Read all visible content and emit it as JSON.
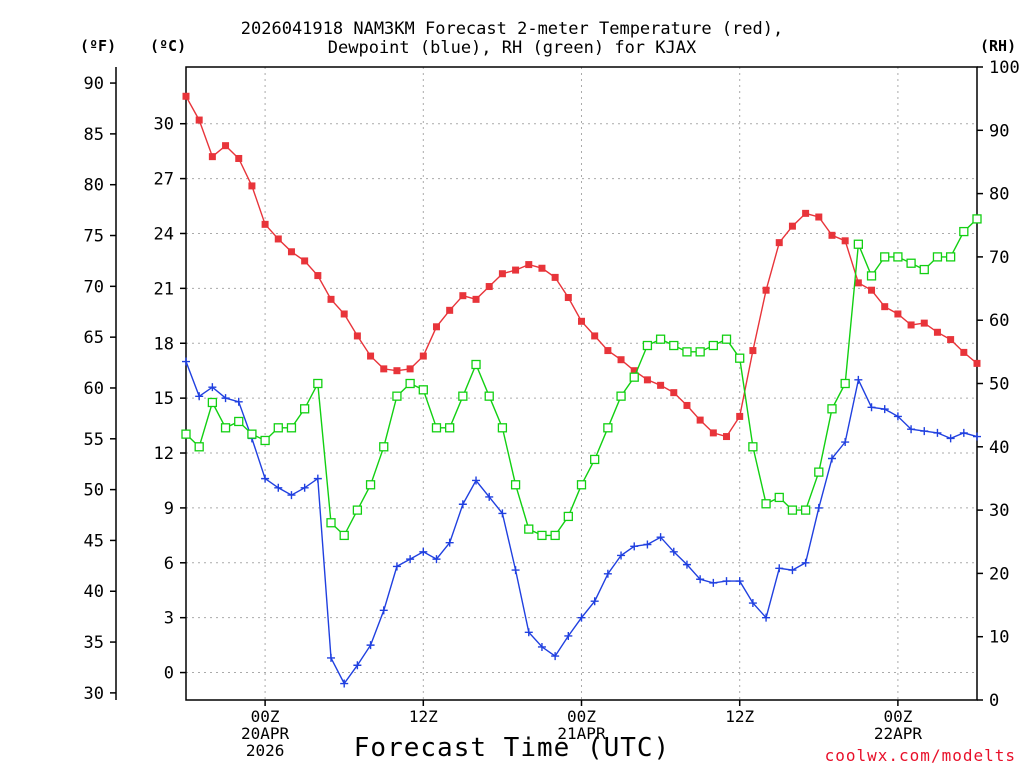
{
  "title_line1": "2026041918 NAM3KM Forecast 2-meter Temperature (red),",
  "title_line2": "Dewpoint (blue), RH (green) for KJAX",
  "unit_f": "(ºF)",
  "unit_c": "(ºC)",
  "unit_rh": "(RH)",
  "credit": "coolwx.com/modelts",
  "chart_data": {
    "type": "line",
    "title": "2026041918 NAM3KM Forecast 2-meter Temperature (red), Dewpoint (blue), RH (green) for KJAX",
    "xlabel": "Forecast Time (UTC)",
    "x_hours": [
      0,
      1,
      2,
      3,
      4,
      5,
      6,
      7,
      8,
      9,
      10,
      11,
      12,
      13,
      14,
      15,
      16,
      17,
      18,
      19,
      20,
      21,
      22,
      23,
      24,
      25,
      26,
      27,
      28,
      29,
      30,
      31,
      32,
      33,
      34,
      35,
      36,
      37,
      38,
      39,
      40,
      41,
      42,
      43,
      44,
      45,
      46,
      47,
      48,
      49,
      50,
      51,
      52,
      53,
      54,
      55,
      56,
      57,
      58,
      59,
      60
    ],
    "x_ticks": [
      {
        "hour": 6,
        "lines": [
          "00Z",
          "20APR",
          "2026"
        ]
      },
      {
        "hour": 18,
        "lines": [
          "12Z"
        ]
      },
      {
        "hour": 30,
        "lines": [
          "00Z",
          "21APR"
        ]
      },
      {
        "hour": 42,
        "lines": [
          "12Z"
        ]
      },
      {
        "hour": 54,
        "lines": [
          "00Z",
          "22APR"
        ]
      }
    ],
    "left_axis_f": {
      "label": "(ºF)",
      "ticks": [
        30,
        35,
        40,
        45,
        50,
        55,
        60,
        65,
        70,
        75,
        80,
        85,
        90
      ]
    },
    "left_axis_c": {
      "label": "(ºC)",
      "range": [
        -1.5,
        33.1
      ],
      "ticks": [
        0,
        3,
        6,
        9,
        12,
        15,
        18,
        21,
        24,
        27,
        30
      ]
    },
    "right_axis_rh": {
      "label": "(RH)",
      "range": [
        0,
        100
      ],
      "ticks": [
        0,
        10,
        20,
        30,
        40,
        50,
        60,
        70,
        80,
        90,
        100
      ]
    },
    "series": [
      {
        "name": "Temperature",
        "unit": "C",
        "axis": "c",
        "color": "#e8343a",
        "marker": "filled-square",
        "values": [
          31.5,
          30.2,
          28.2,
          28.8,
          28.1,
          26.6,
          24.5,
          23.7,
          23.0,
          22.5,
          21.7,
          20.4,
          19.6,
          18.4,
          17.3,
          16.6,
          16.5,
          16.6,
          17.3,
          18.9,
          19.8,
          20.6,
          20.4,
          21.1,
          21.8,
          22.0,
          22.3,
          22.1,
          21.6,
          20.5,
          19.2,
          18.4,
          17.6,
          17.1,
          16.5,
          16.0,
          15.7,
          15.3,
          14.6,
          13.8,
          13.1,
          12.9,
          14.0,
          17.6,
          20.9,
          23.5,
          24.4,
          25.1,
          24.9,
          23.9,
          23.6,
          21.3,
          20.9,
          20.0,
          19.6,
          19.0,
          19.1,
          18.6,
          18.2,
          17.5,
          16.9
        ]
      },
      {
        "name": "Dewpoint",
        "unit": "C",
        "axis": "c",
        "color": "#2040e0",
        "marker": "plus",
        "values": [
          17.0,
          15.1,
          15.6,
          15.0,
          14.8,
          12.8,
          10.6,
          10.1,
          9.7,
          10.1,
          10.6,
          0.8,
          -0.6,
          0.4,
          1.5,
          3.4,
          5.8,
          6.2,
          6.6,
          6.2,
          7.1,
          9.2,
          10.5,
          9.6,
          8.7,
          5.6,
          2.2,
          1.4,
          0.9,
          2.0,
          3.0,
          3.9,
          5.4,
          6.4,
          6.9,
          7.0,
          7.4,
          6.6,
          5.9,
          5.1,
          4.9,
          5.0,
          5.0,
          3.8,
          3.0,
          5.7,
          5.6,
          6.0,
          9.0,
          11.7,
          12.6,
          16.0,
          14.5,
          14.4,
          14.0,
          13.3,
          13.2,
          13.1,
          12.8,
          13.1,
          12.9
        ]
      },
      {
        "name": "RH",
        "unit": "%",
        "axis": "rh",
        "color": "#12d012",
        "marker": "open-square",
        "values": [
          42,
          40,
          47,
          43,
          44,
          42,
          41,
          43,
          43,
          46,
          50,
          28,
          26,
          30,
          34,
          40,
          48,
          50,
          49,
          43,
          43,
          48,
          53,
          48,
          43,
          34,
          27,
          26,
          26,
          29,
          34,
          38,
          43,
          48,
          51,
          56,
          57,
          56,
          55,
          55,
          56,
          57,
          54,
          40,
          31,
          32,
          30,
          30,
          36,
          46,
          50,
          72,
          67,
          70,
          70,
          69,
          68,
          70,
          70,
          74,
          76
        ]
      }
    ]
  }
}
